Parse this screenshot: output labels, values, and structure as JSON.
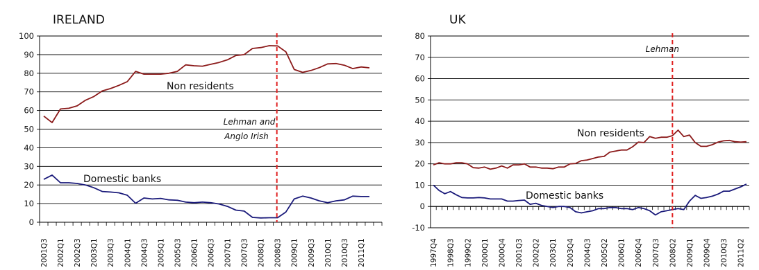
{
  "chart_data": [
    {
      "type": "line",
      "title": "IRELAND",
      "xlabel": "",
      "ylabel": "",
      "ylim": [
        0,
        100
      ],
      "yticks": [
        0,
        10,
        20,
        30,
        40,
        50,
        60,
        70,
        80,
        90,
        100
      ],
      "grid": true,
      "x_tick_labels": [
        "2001Q3",
        "2002Q1",
        "2002Q3",
        "2003Q1",
        "2003Q3",
        "2004Q1",
        "2004Q3",
        "2005Q1",
        "2005Q3",
        "2006Q1",
        "2006Q3",
        "2007Q1",
        "2007Q3",
        "2008Q1",
        "2008Q3",
        "2009Q1",
        "2009Q3",
        "2010Q1",
        "2010Q3",
        "2011Q1"
      ],
      "x": [
        "2001Q3",
        "2001Q4",
        "2002Q1",
        "2002Q2",
        "2002Q3",
        "2002Q4",
        "2003Q1",
        "2003Q2",
        "2003Q3",
        "2003Q4",
        "2004Q1",
        "2004Q2",
        "2004Q3",
        "2004Q4",
        "2005Q1",
        "2005Q2",
        "2005Q3",
        "2005Q4",
        "2006Q1",
        "2006Q2",
        "2006Q3",
        "2006Q4",
        "2007Q1",
        "2007Q2",
        "2007Q3",
        "2007Q4",
        "2008Q1",
        "2008Q2",
        "2008Q3",
        "2008Q4",
        "2009Q1",
        "2009Q2",
        "2009Q3",
        "2009Q4",
        "2010Q1",
        "2010Q2",
        "2010Q3",
        "2010Q4",
        "2011Q1",
        "2011Q2",
        "2011Q3"
      ],
      "series": [
        {
          "name": "Non residents",
          "color": "#8b1a1a",
          "values": [
            57,
            53.5,
            60.8,
            61.2,
            62.5,
            65.5,
            67.5,
            70.5,
            71.8,
            73.5,
            75.5,
            81,
            79.5,
            79.5,
            79.5,
            80,
            81,
            84.5,
            84,
            83.8,
            84.8,
            85.8,
            87.2,
            89.5,
            90,
            93.3,
            93.8,
            94.8,
            94.7,
            91.5,
            82,
            80.5,
            81.5,
            83,
            85,
            85.2,
            84.3,
            82.5,
            83.4,
            82.9,
            null
          ]
        },
        {
          "name": "Domestic banks",
          "color": "#1a1a7a",
          "values": [
            23,
            25.3,
            21.2,
            21.2,
            20.8,
            20,
            18.5,
            16.5,
            16.2,
            15.8,
            14.5,
            10.2,
            13,
            12.5,
            12.8,
            12,
            11.8,
            10.8,
            10.5,
            10.8,
            10.5,
            9.8,
            8.5,
            6.5,
            6,
            2.6,
            2.3,
            2.4,
            2.4,
            5.5,
            12.5,
            14,
            13,
            11.5,
            10.5,
            11.5,
            12,
            14,
            13.8,
            13.8,
            null
          ]
        }
      ],
      "annotations": [
        {
          "x": "2008Q3",
          "label": "Lehman and Anglo Irish",
          "style": "dashed",
          "color": "#e02020"
        }
      ]
    },
    {
      "type": "line",
      "title": "UK",
      "xlabel": "",
      "ylabel": "",
      "ylim": [
        -10,
        80
      ],
      "yticks": [
        -10,
        0,
        10,
        20,
        30,
        40,
        50,
        60,
        70,
        80
      ],
      "grid": true,
      "x_tick_labels": [
        "1997Q4",
        "1998Q3",
        "1999Q2",
        "2000Q1",
        "2000Q4",
        "2001Q3",
        "2002Q2",
        "2003Q1",
        "2003Q4",
        "2004Q3",
        "2005Q2",
        "2006Q1",
        "2006Q4",
        "2007Q3",
        "2008Q2",
        "2009Q1",
        "2009Q4",
        "2010Q3",
        "2011Q2"
      ],
      "x": [
        "1997Q4",
        "1998Q1",
        "1998Q2",
        "1998Q3",
        "1998Q4",
        "1999Q1",
        "1999Q2",
        "1999Q3",
        "1999Q4",
        "2000Q1",
        "2000Q2",
        "2000Q3",
        "2000Q4",
        "2001Q1",
        "2001Q2",
        "2001Q3",
        "2001Q4",
        "2002Q1",
        "2002Q2",
        "2002Q3",
        "2002Q4",
        "2003Q1",
        "2003Q2",
        "2003Q3",
        "2003Q4",
        "2004Q1",
        "2004Q2",
        "2004Q3",
        "2004Q4",
        "2005Q1",
        "2005Q2",
        "2005Q3",
        "2005Q4",
        "2006Q1",
        "2006Q2",
        "2006Q3",
        "2006Q4",
        "2007Q1",
        "2007Q2",
        "2007Q3",
        "2007Q4",
        "2008Q1",
        "2008Q2",
        "2008Q3",
        "2008Q4",
        "2009Q1",
        "2009Q2",
        "2009Q3",
        "2009Q4",
        "2010Q1",
        "2010Q2",
        "2010Q3",
        "2010Q4",
        "2011Q1",
        "2011Q2",
        "2011Q3"
      ],
      "series": [
        {
          "name": "Non residents",
          "color": "#8b1a1a",
          "values": [
            19.5,
            20.5,
            20,
            20,
            20.5,
            20.5,
            20,
            18.2,
            18,
            18.5,
            17.5,
            18,
            19,
            18,
            19.5,
            19.5,
            20,
            18.5,
            18.5,
            18,
            18,
            17.7,
            18.5,
            18.5,
            20,
            20.2,
            21.5,
            21.8,
            22.5,
            23.2,
            23.5,
            25.5,
            26,
            26.5,
            26.5,
            28,
            30.2,
            30,
            32.8,
            32,
            32.5,
            32.5,
            33.2,
            35.8,
            32.8,
            33.5,
            30,
            28.2,
            28.2,
            29,
            30.2,
            30.8,
            31,
            30.4,
            30.2,
            30.4
          ]
        },
        {
          "name": "Domestic banks",
          "color": "#1a1a7a",
          "values": [
            10,
            7.5,
            6,
            7,
            5.5,
            4.2,
            4,
            4,
            4.2,
            4,
            3.5,
            3.5,
            3.5,
            2.5,
            2.5,
            2.8,
            3,
            1,
            1.5,
            0.5,
            0,
            -0.5,
            0,
            0,
            -0.5,
            -2.5,
            -3,
            -2.5,
            -2,
            -1,
            -1,
            -0.5,
            -0.5,
            -1,
            -1,
            -1.5,
            -0.5,
            -1,
            -2,
            -4,
            -2.5,
            -2,
            -1.5,
            -1,
            -1.5,
            2.5,
            5.2,
            3.8,
            4.2,
            4.8,
            5.8,
            7.2,
            7.2,
            8.2,
            9.2,
            10.5
          ]
        }
      ],
      "annotations": [
        {
          "x": "2008Q3",
          "label": "Lehman",
          "style": "dashed",
          "color": "#e02020"
        }
      ]
    }
  ]
}
